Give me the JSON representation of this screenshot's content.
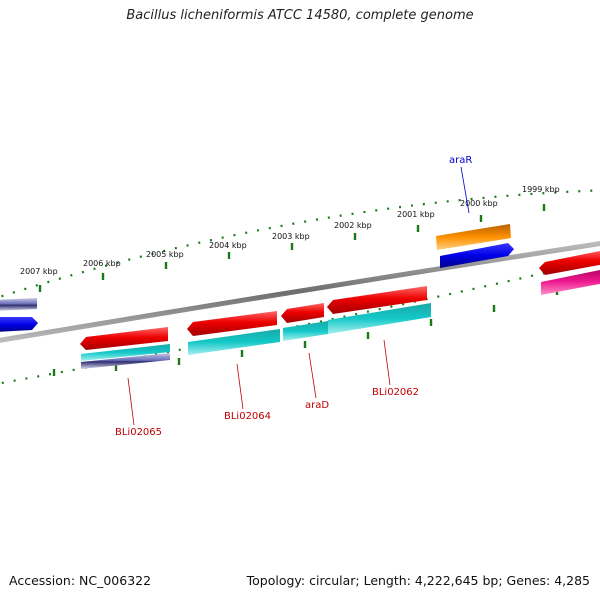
{
  "title": "Bacillus licheniformis ATCC 14580, complete genome",
  "footer": {
    "accession": "Accession: NC_006322",
    "topology": "Topology: circular; Length: 4,222,645 bp; Genes: 4,285"
  },
  "colors": {
    "backbone": "#7a7a7a",
    "ticks": "#1a7a1a",
    "gene_label_red": "#c00000",
    "gene_label_blue": "#0000cc",
    "feature_red": "#e80000",
    "feature_cyan": "#10c8c8",
    "feature_orange": "#ff8c00",
    "feature_blue": "#0000e6",
    "feature_magenta": "#e6108c",
    "feature_slate": "#6070a8"
  },
  "kbp_labels": [
    "2007 kbp",
    "2006 kbp",
    "2005 kbp",
    "2004 kbp",
    "2003 kbp",
    "2002 kbp",
    "2001 kbp",
    "2000 kbp",
    "1999 kbp"
  ],
  "gene_labels": [
    {
      "name": "araR",
      "color": "blue"
    },
    {
      "name": "BLi02065",
      "color": "red"
    },
    {
      "name": "BLi02064",
      "color": "red"
    },
    {
      "name": "araD",
      "color": "red"
    },
    {
      "name": "BLi02062",
      "color": "red"
    }
  ]
}
